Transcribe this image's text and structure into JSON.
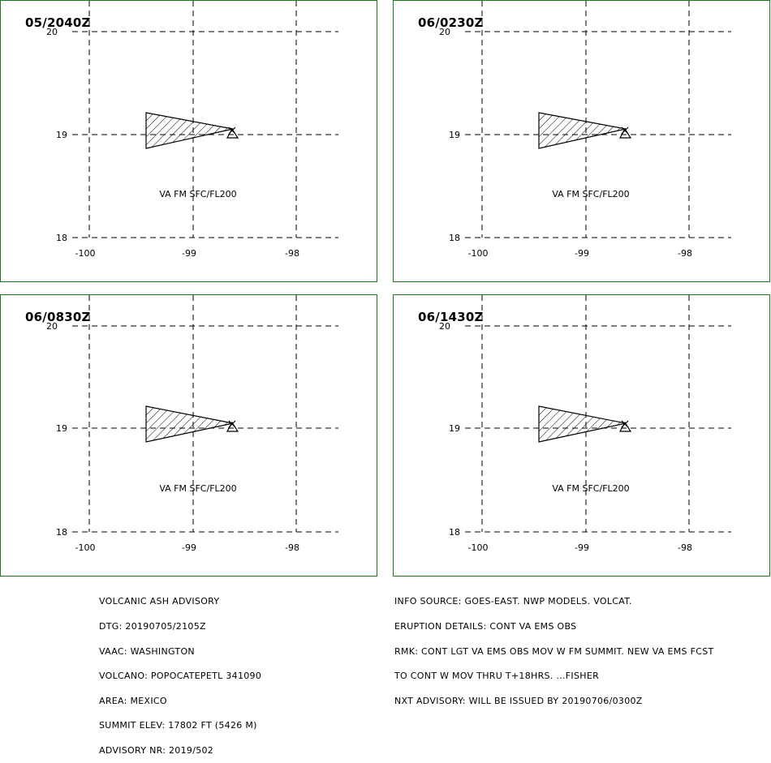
{
  "panels": [
    {
      "time": "05/2040Z",
      "label": "VA FM SFC/FL200"
    },
    {
      "time": "06/0230Z",
      "label": "VA FM SFC/FL200"
    },
    {
      "time": "06/0830Z",
      "label": "VA FM SFC/FL200"
    },
    {
      "time": "06/1430Z",
      "label": "VA FM SFC/FL200"
    }
  ],
  "axes": {
    "lat_labels": [
      "20",
      "19",
      "18"
    ],
    "lon_labels": [
      "-100",
      "-99",
      "-98"
    ]
  },
  "advisory_left": [
    "VOLCANIC ASH ADVISORY",
    "DTG: 20190705/2105Z",
    "VAAC: WASHINGTON",
    "VOLCANO: POPOCATEPETL 341090",
    "AREA: MEXICO",
    "SUMMIT ELEV: 17802 FT (5426 M)",
    "ADVISORY NR: 2019/502"
  ],
  "advisory_right": [
    "INFO SOURCE: GOES-EAST. NWP MODELS. VOLCAT.",
    "ERUPTION DETAILS: CONT VA EMS OBS",
    "RMK: CONT LGT VA EMS OBS MOV W FM SUMMIT. NEW VA EMS FCST",
    "TO CONT W MOV THRU T+18HRS. ...FISHER",
    "NXT ADVISORY: WILL BE ISSUED BY 20190706/0300Z"
  ],
  "colors": {
    "panel_border": "#1a7a1a",
    "grid": "#000000"
  },
  "icons": {
    "volcano": "volcano-triangle-icon"
  }
}
